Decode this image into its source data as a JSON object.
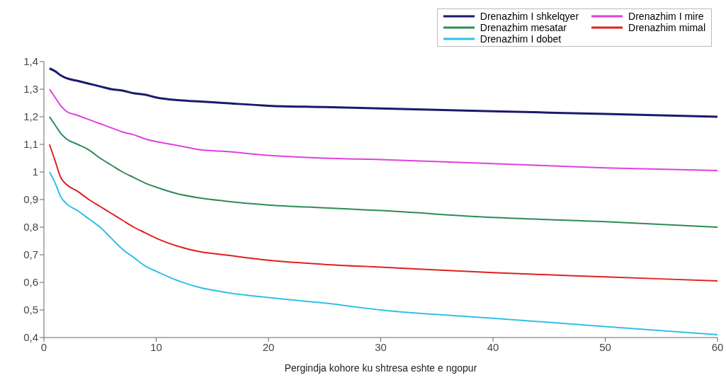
{
  "chart_data": {
    "type": "line",
    "xlabel": "Pergindja kohore ku shtresa eshte e ngopur",
    "x": [
      0.5,
      1,
      1.5,
      2,
      3,
      4,
      5,
      6,
      7,
      8,
      9,
      10,
      12,
      14,
      16,
      20,
      25,
      30,
      40,
      50,
      60
    ],
    "series": [
      {
        "name": "Drenazhim I shkelqyer",
        "color": "#1a1a6e",
        "values": [
          1.375,
          1.365,
          1.35,
          1.34,
          1.33,
          1.32,
          1.31,
          1.3,
          1.295,
          1.285,
          1.28,
          1.27,
          1.26,
          1.255,
          1.25,
          1.24,
          1.235,
          1.23,
          1.22,
          1.21,
          1.2
        ]
      },
      {
        "name": "Drenazhim I mire",
        "color": "#e040e0",
        "values": [
          1.3,
          1.27,
          1.24,
          1.22,
          1.205,
          1.19,
          1.175,
          1.16,
          1.145,
          1.135,
          1.12,
          1.11,
          1.095,
          1.08,
          1.075,
          1.06,
          1.05,
          1.045,
          1.03,
          1.015,
          1.005
        ]
      },
      {
        "name": "Drenazhim mesatar",
        "color": "#2e8b57",
        "values": [
          1.2,
          1.17,
          1.14,
          1.12,
          1.1,
          1.08,
          1.05,
          1.025,
          1.0,
          0.98,
          0.96,
          0.945,
          0.92,
          0.905,
          0.895,
          0.88,
          0.87,
          0.86,
          0.835,
          0.82,
          0.8
        ]
      },
      {
        "name": "Drenazhim mimal",
        "color": "#e02020",
        "values": [
          1.1,
          1.04,
          0.98,
          0.955,
          0.93,
          0.9,
          0.875,
          0.85,
          0.825,
          0.8,
          0.78,
          0.76,
          0.73,
          0.71,
          0.7,
          0.68,
          0.665,
          0.655,
          0.635,
          0.62,
          0.605
        ]
      },
      {
        "name": "Drenazhim I dobet",
        "color": "#30c0e8",
        "values": [
          1.0,
          0.96,
          0.91,
          0.885,
          0.86,
          0.83,
          0.8,
          0.76,
          0.72,
          0.69,
          0.66,
          0.64,
          0.605,
          0.58,
          0.565,
          0.545,
          0.525,
          0.5,
          0.47,
          0.44,
          0.41
        ]
      }
    ],
    "xlim": [
      0,
      60
    ],
    "xticks": [
      0,
      10,
      20,
      30,
      40,
      50,
      60
    ],
    "ylim": [
      0.4,
      1.4
    ],
    "yticks": [
      {
        "value": 0.4,
        "label": "0,4"
      },
      {
        "value": 0.5,
        "label": "0,5"
      },
      {
        "value": 0.6,
        "label": "0,6"
      },
      {
        "value": 0.7,
        "label": "0,7"
      },
      {
        "value": 0.8,
        "label": "0,8"
      },
      {
        "value": 0.9,
        "label": "0,9"
      },
      1,
      {
        "value": 1.1,
        "label": "1,1"
      },
      {
        "value": 1.2,
        "label": "1,2"
      },
      {
        "value": 1.3,
        "label": "1,3"
      },
      {
        "value": 1.4,
        "label": "1,4"
      }
    ],
    "grid": false,
    "legend": "top right",
    "marker": "none",
    "line_style": "solid"
  }
}
